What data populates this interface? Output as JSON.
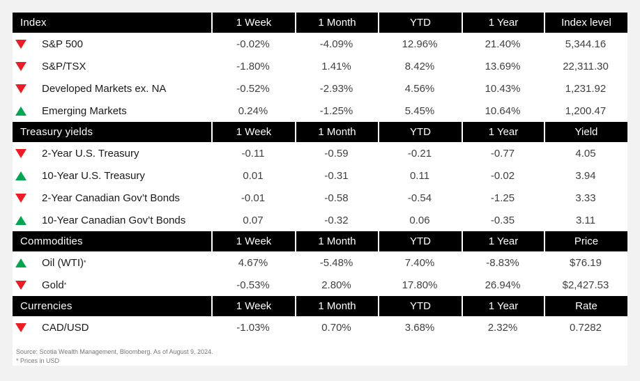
{
  "title": "Market performance summary table",
  "colors": {
    "background": "#f2f2f3",
    "card": "#ffffff",
    "header_bg": "#000000",
    "header_text": "#ffffff",
    "up_green": "#00a651",
    "down_red": "#ed1c24",
    "label_text": "#1a1a1a",
    "value_text": "#404040",
    "footer_text": "#75767a"
  },
  "chart_data": [
    {
      "type": "table",
      "title": "Index",
      "columns": [
        "1 Week",
        "1 Month",
        "YTD",
        "1 Year",
        "Index level"
      ],
      "rows": [
        {
          "direction": "down",
          "label": "S&P 500",
          "values": [
            "-0.02%",
            "-4.09%",
            "12.96%",
            "21.40%",
            "5,344.16"
          ]
        },
        {
          "direction": "down",
          "label": "S&P/TSX",
          "values": [
            "-1.80%",
            "1.41%",
            "8.42%",
            "13.69%",
            "22,311.30"
          ]
        },
        {
          "direction": "down",
          "label": "Developed Markets ex. NA",
          "values": [
            "-0.52%",
            "-2.93%",
            "4.56%",
            "10.43%",
            "1,231.92"
          ]
        },
        {
          "direction": "up",
          "label": "Emerging Markets",
          "values": [
            "0.24%",
            "-1.25%",
            "5.45%",
            "10.64%",
            "1,200.47"
          ]
        }
      ]
    },
    {
      "type": "table",
      "title": "Treasury yields",
      "columns": [
        "1 Week",
        "1 Month",
        "YTD",
        "1 Year",
        "Yield"
      ],
      "rows": [
        {
          "direction": "down",
          "label": "2-Year U.S. Treasury",
          "values": [
            "-0.11",
            "-0.59",
            "-0.21",
            "-0.77",
            "4.05"
          ]
        },
        {
          "direction": "up",
          "label": "10-Year U.S. Treasury",
          "values": [
            "0.01",
            "-0.31",
            "0.11",
            "-0.02",
            "3.94"
          ]
        },
        {
          "direction": "down",
          "label": "2-Year Canadian Gov’t Bonds",
          "values": [
            "-0.01",
            "-0.58",
            "-0.54",
            "-1.25",
            "3.33"
          ]
        },
        {
          "direction": "up",
          "label": "10-Year Canadian Gov’t Bonds",
          "values": [
            "0.07",
            "-0.32",
            "0.06",
            "-0.35",
            "3.11"
          ]
        }
      ]
    },
    {
      "type": "table",
      "title": "Commodities",
      "columns": [
        "1 Week",
        "1 Month",
        "YTD",
        "1 Year",
        "Price"
      ],
      "rows": [
        {
          "direction": "up",
          "label": "Oil (WTI)",
          "sup": "*",
          "values": [
            "4.67%",
            "-5.48%",
            "7.40%",
            "-8.83%",
            "$76.19"
          ]
        },
        {
          "direction": "down",
          "label": "Gold",
          "sup": "*",
          "values": [
            "-0.53%",
            "2.80%",
            "17.80%",
            "26.94%",
            "$2,427.53"
          ]
        }
      ]
    },
    {
      "type": "table",
      "title": "Currencies",
      "columns": [
        "1 Week",
        "1 Month",
        "YTD",
        "1 Year",
        "Rate"
      ],
      "rows": [
        {
          "direction": "down",
          "label": "CAD/USD",
          "values": [
            "-1.03%",
            "0.70%",
            "3.68%",
            "2.32%",
            "0.7282"
          ]
        }
      ]
    }
  ],
  "footer": {
    "source": "Source: Scotia Wealth Management, Bloomberg. As of August 9, 2024.",
    "note": "* Prices in USD"
  }
}
